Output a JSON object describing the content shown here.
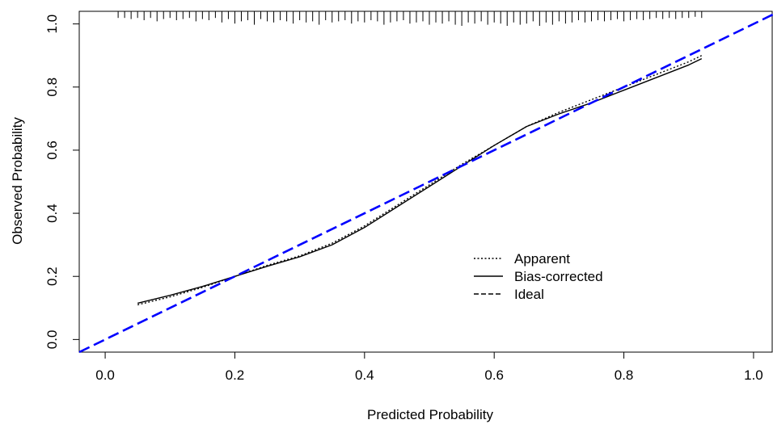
{
  "chart_data": {
    "type": "line",
    "xlabel": "Predicted Probability",
    "ylabel": "Observed Probability",
    "xlim": [
      -0.04,
      1.03
    ],
    "ylim": [
      -0.04,
      1.04
    ],
    "x_ticks": [
      0.0,
      0.2,
      0.4,
      0.6,
      0.8,
      1.0
    ],
    "x_tick_labels": [
      "0.0",
      "0.2",
      "0.4",
      "0.6",
      "0.8",
      "1.0"
    ],
    "y_ticks": [
      0.0,
      0.2,
      0.4,
      0.6,
      0.8,
      1.0
    ],
    "y_tick_labels": [
      "0.0",
      "0.2",
      "0.4",
      "0.6",
      "0.8",
      "1.0"
    ],
    "grid": false,
    "legend_position": "bottom-right",
    "series": [
      {
        "name": "Apparent",
        "style": "dotted",
        "color": "#000000",
        "x": [
          0.05,
          0.1,
          0.15,
          0.2,
          0.25,
          0.3,
          0.35,
          0.4,
          0.45,
          0.5,
          0.55,
          0.6,
          0.65,
          0.7,
          0.75,
          0.8,
          0.85,
          0.9,
          0.92
        ],
        "y": [
          0.11,
          0.135,
          0.165,
          0.2,
          0.235,
          0.265,
          0.305,
          0.36,
          0.425,
          0.49,
          0.555,
          0.615,
          0.675,
          0.72,
          0.76,
          0.8,
          0.84,
          0.88,
          0.9
        ]
      },
      {
        "name": "Bias-corrected",
        "style": "solid",
        "color": "#000000",
        "x": [
          0.05,
          0.1,
          0.15,
          0.2,
          0.25,
          0.3,
          0.35,
          0.4,
          0.45,
          0.5,
          0.55,
          0.6,
          0.65,
          0.7,
          0.75,
          0.8,
          0.85,
          0.9,
          0.92
        ],
        "y": [
          0.115,
          0.14,
          0.168,
          0.2,
          0.232,
          0.262,
          0.3,
          0.355,
          0.42,
          0.485,
          0.55,
          0.615,
          0.675,
          0.715,
          0.75,
          0.79,
          0.83,
          0.87,
          0.89
        ]
      },
      {
        "name": "Ideal",
        "style": "dashed",
        "color": "#0000ff",
        "x": [
          -0.04,
          1.03
        ],
        "y": [
          -0.04,
          1.03
        ]
      }
    ],
    "rug_x": [
      0.02,
      0.03,
      0.04,
      0.05,
      0.06,
      0.07,
      0.08,
      0.09,
      0.1,
      0.11,
      0.12,
      0.13,
      0.14,
      0.15,
      0.16,
      0.17,
      0.18,
      0.19,
      0.2,
      0.21,
      0.22,
      0.23,
      0.24,
      0.25,
      0.26,
      0.27,
      0.28,
      0.29,
      0.3,
      0.31,
      0.32,
      0.33,
      0.34,
      0.35,
      0.36,
      0.37,
      0.38,
      0.39,
      0.4,
      0.41,
      0.42,
      0.43,
      0.44,
      0.45,
      0.46,
      0.47,
      0.48,
      0.49,
      0.5,
      0.51,
      0.52,
      0.53,
      0.54,
      0.55,
      0.56,
      0.57,
      0.58,
      0.59,
      0.6,
      0.61,
      0.62,
      0.63,
      0.64,
      0.65,
      0.66,
      0.67,
      0.68,
      0.69,
      0.7,
      0.71,
      0.72,
      0.73,
      0.74,
      0.75,
      0.76,
      0.77,
      0.78,
      0.79,
      0.8,
      0.81,
      0.82,
      0.83,
      0.84,
      0.85,
      0.86,
      0.87,
      0.88,
      0.89,
      0.9,
      0.91,
      0.92
    ],
    "rug_heights": [
      0.3,
      0.3,
      0.4,
      0.3,
      0.5,
      0.3,
      0.6,
      0.4,
      0.3,
      0.5,
      0.4,
      0.3,
      0.6,
      0.4,
      0.5,
      0.3,
      0.7,
      0.4,
      0.8,
      0.6,
      0.5,
      0.9,
      0.4,
      0.6,
      0.7,
      0.5,
      0.6,
      0.8,
      0.5,
      0.7,
      0.6,
      0.9,
      0.5,
      0.7,
      0.6,
      0.5,
      0.8,
      0.6,
      0.7,
      0.5,
      0.6,
      0.9,
      0.7,
      0.6,
      0.5,
      0.8,
      0.7,
      0.6,
      0.9,
      0.7,
      0.8,
      0.6,
      0.9,
      1.0,
      0.7,
      0.8,
      0.6,
      0.9,
      0.7,
      0.8,
      1.0,
      0.7,
      0.9,
      0.8,
      0.6,
      1.0,
      0.7,
      0.9,
      0.6,
      0.8,
      0.7,
      0.5,
      0.7,
      0.6,
      0.5,
      0.6,
      0.5,
      0.4,
      0.6,
      0.5,
      0.4,
      0.5,
      0.4,
      0.3,
      0.4,
      0.3,
      0.4,
      0.3,
      0.3,
      0.2,
      0.3
    ]
  }
}
